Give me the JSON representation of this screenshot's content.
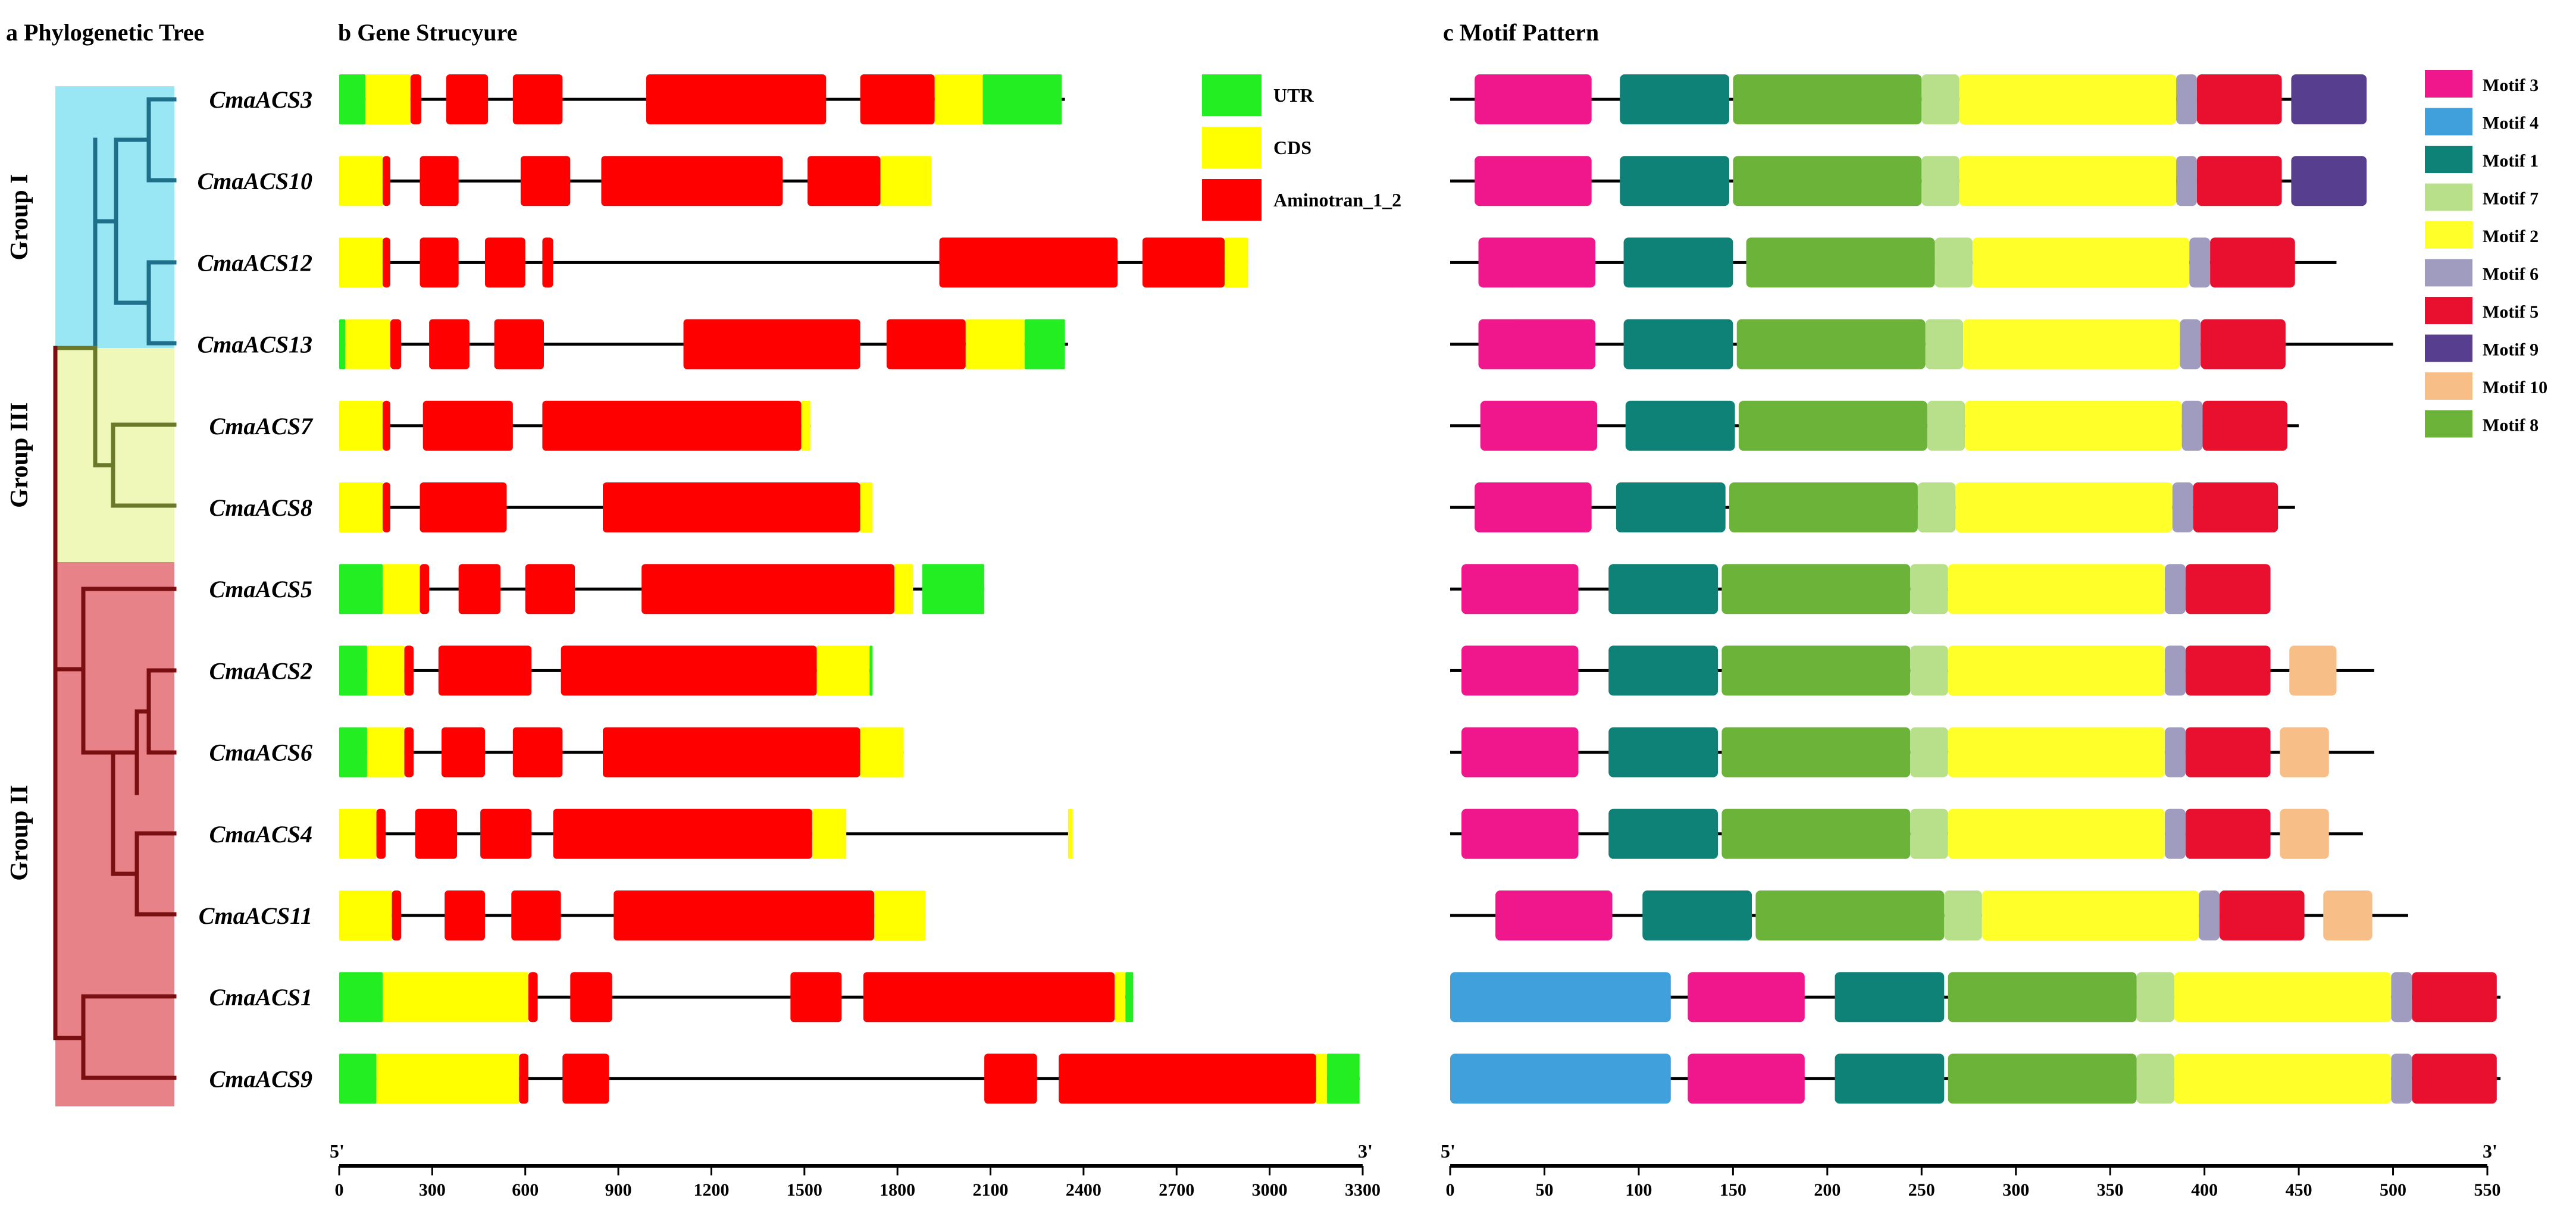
{
  "titles": {
    "a": "a Phylogenetic Tree",
    "b": "b Gene Strucyure",
    "c": "c Motif Pattern"
  },
  "groups": [
    {
      "label": "Group I",
      "color": "#99E6F5",
      "stroke": "#1E6F8A"
    },
    {
      "label": "Group III",
      "color": "#EFF8B8",
      "stroke": "#6B7A2A"
    },
    {
      "label": "Group II",
      "color": "#E68288",
      "stroke": "#7A0F12"
    }
  ],
  "genes": [
    "CmaACS3",
    "CmaACS10",
    "CmaACS12",
    "CmaACS13",
    "CmaACS7",
    "CmaACS8",
    "CmaACS5",
    "CmaACS2",
    "CmaACS6",
    "CmaACS4",
    "CmaACS11",
    "CmaACS1",
    "CmaACS9"
  ],
  "gene_axis": {
    "start_label": "5'",
    "end_label": "3'",
    "ticks": [
      0,
      300,
      600,
      900,
      1200,
      1500,
      1800,
      2100,
      2400,
      2700,
      3000,
      3300
    ],
    "max": 3300
  },
  "motif_axis": {
    "start_label": "5'",
    "end_label": "3'",
    "ticks": [
      0,
      50,
      100,
      150,
      200,
      250,
      300,
      350,
      400,
      450,
      500,
      550
    ],
    "max": 550
  },
  "feature_legend": [
    {
      "key": "UTR",
      "label": "UTR",
      "color": "#22EE22"
    },
    {
      "key": "CDS",
      "label": "CDS",
      "color": "#FFFF00"
    },
    {
      "key": "AMI",
      "label": "Aminotran_1_2",
      "color": "#FF0000"
    }
  ],
  "motif_legend": [
    {
      "key": "3",
      "label": "Motif 3",
      "color": "#F0178C"
    },
    {
      "key": "4",
      "label": "Motif 4",
      "color": "#3FA0DC"
    },
    {
      "key": "1",
      "label": "Motif 1",
      "color": "#0F8278"
    },
    {
      "key": "7",
      "label": "Motif 7",
      "color": "#B8E08A"
    },
    {
      "key": "2",
      "label": "Motif 2",
      "color": "#FFFF2A"
    },
    {
      "key": "6",
      "label": "Motif 6",
      "color": "#A09CC0"
    },
    {
      "key": "5",
      "label": "Motif 5",
      "color": "#E8102E"
    },
    {
      "key": "9",
      "label": "Motif 9",
      "color": "#573E8E"
    },
    {
      "key": "10",
      "label": "Motif 10",
      "color": "#F8BE88"
    },
    {
      "key": "8",
      "label": "Motif 8",
      "color": "#6CB33A"
    }
  ],
  "chart_data": {
    "type": "gene_structure",
    "gene_structures": [
      {
        "gene": "CmaACS3",
        "length": 2340,
        "features": [
          [
            "UTR",
            0,
            85
          ],
          [
            "CDS",
            85,
            230
          ],
          [
            "AMI",
            230,
            265
          ],
          [
            "AMI",
            345,
            480
          ],
          [
            "AMI",
            560,
            720
          ],
          [
            "AMI",
            990,
            1570
          ],
          [
            "AMI",
            1680,
            1920
          ],
          [
            "CDS",
            1920,
            2075
          ],
          [
            "UTR",
            2075,
            2330
          ]
        ]
      },
      {
        "gene": "CmaACS10",
        "length": 1910,
        "features": [
          [
            "CDS",
            0,
            140
          ],
          [
            "AMI",
            140,
            165
          ],
          [
            "AMI",
            260,
            385
          ],
          [
            "AMI",
            585,
            745
          ],
          [
            "AMI",
            845,
            1430
          ],
          [
            "AMI",
            1510,
            1745
          ],
          [
            "CDS",
            1745,
            1910
          ]
        ]
      },
      {
        "gene": "CmaACS12",
        "length": 2930,
        "features": [
          [
            "CDS",
            0,
            140
          ],
          [
            "AMI",
            140,
            165
          ],
          [
            "AMI",
            260,
            385
          ],
          [
            "AMI",
            470,
            600
          ],
          [
            "AMI",
            655,
            690
          ],
          [
            "AMI",
            1935,
            2510
          ],
          [
            "AMI",
            2590,
            2855
          ],
          [
            "CDS",
            2855,
            2930
          ]
        ]
      },
      {
        "gene": "CmaACS13",
        "length": 2350,
        "features": [
          [
            "UTR",
            0,
            20
          ],
          [
            "CDS",
            20,
            165
          ],
          [
            "AMI",
            165,
            200
          ],
          [
            "AMI",
            290,
            420
          ],
          [
            "AMI",
            500,
            660
          ],
          [
            "AMI",
            1110,
            1680
          ],
          [
            "AMI",
            1765,
            2020
          ],
          [
            "CDS",
            2020,
            2210
          ],
          [
            "UTR",
            2210,
            2340
          ]
        ]
      },
      {
        "gene": "CmaACS7",
        "length": 1520,
        "features": [
          [
            "CDS",
            0,
            140
          ],
          [
            "AMI",
            140,
            165
          ],
          [
            "AMI",
            270,
            560
          ],
          [
            "AMI",
            655,
            1490
          ],
          [
            "CDS",
            1490,
            1520
          ]
        ]
      },
      {
        "gene": "CmaACS8",
        "length": 1720,
        "features": [
          [
            "CDS",
            0,
            140
          ],
          [
            "AMI",
            140,
            165
          ],
          [
            "AMI",
            260,
            540
          ],
          [
            "AMI",
            850,
            1680
          ],
          [
            "CDS",
            1680,
            1720
          ]
        ]
      },
      {
        "gene": "CmaACS5",
        "length": 2080,
        "features": [
          [
            "UTR",
            0,
            140
          ],
          [
            "CDS",
            140,
            260
          ],
          [
            "AMI",
            260,
            290
          ],
          [
            "AMI",
            385,
            520
          ],
          [
            "AMI",
            600,
            760
          ],
          [
            "AMI",
            975,
            1790
          ],
          [
            "CDS",
            1790,
            1850
          ],
          [
            "UTR",
            1880,
            2080
          ]
        ]
      },
      {
        "gene": "CmaACS2",
        "length": 1720,
        "features": [
          [
            "UTR",
            0,
            90
          ],
          [
            "CDS",
            90,
            210
          ],
          [
            "AMI",
            210,
            240
          ],
          [
            "AMI",
            320,
            620
          ],
          [
            "AMI",
            715,
            1540
          ],
          [
            "CDS",
            1540,
            1710
          ],
          [
            "UTR",
            1710,
            1720
          ]
        ]
      },
      {
        "gene": "CmaACS6",
        "length": 1820,
        "features": [
          [
            "UTR",
            0,
            90
          ],
          [
            "CDS",
            90,
            210
          ],
          [
            "AMI",
            210,
            240
          ],
          [
            "AMI",
            330,
            470
          ],
          [
            "AMI",
            560,
            720
          ],
          [
            "AMI",
            850,
            1680
          ],
          [
            "CDS",
            1680,
            1820
          ]
        ]
      },
      {
        "gene": "CmaACS4",
        "length": 2360,
        "features": [
          [
            "CDS",
            0,
            120
          ],
          [
            "AMI",
            120,
            150
          ],
          [
            "AMI",
            245,
            380
          ],
          [
            "AMI",
            455,
            620
          ],
          [
            "AMI",
            690,
            1525
          ],
          [
            "CDS",
            1525,
            1635
          ],
          [
            "CDS",
            2350,
            2365
          ]
        ]
      },
      {
        "gene": "CmaACS11",
        "length": 1890,
        "features": [
          [
            "CDS",
            0,
            170
          ],
          [
            "AMI",
            170,
            200
          ],
          [
            "AMI",
            340,
            470
          ],
          [
            "AMI",
            555,
            715
          ],
          [
            "AMI",
            885,
            1725
          ],
          [
            "CDS",
            1725,
            1890
          ]
        ]
      },
      {
        "gene": "CmaACS1",
        "length": 2560,
        "features": [
          [
            "UTR",
            0,
            140
          ],
          [
            "CDS",
            140,
            610
          ],
          [
            "AMI",
            610,
            640
          ],
          [
            "AMI",
            745,
            880
          ],
          [
            "AMI",
            1455,
            1620
          ],
          [
            "AMI",
            1690,
            2500
          ],
          [
            "CDS",
            2500,
            2535
          ],
          [
            "UTR",
            2535,
            2560
          ]
        ]
      },
      {
        "gene": "CmaACS9",
        "length": 3290,
        "features": [
          [
            "UTR",
            0,
            120
          ],
          [
            "CDS",
            120,
            580
          ],
          [
            "AMI",
            580,
            610
          ],
          [
            "AMI",
            720,
            870
          ],
          [
            "AMI",
            2080,
            2250
          ],
          [
            "AMI",
            2320,
            3150
          ],
          [
            "CDS",
            3150,
            3185
          ],
          [
            "UTR",
            3185,
            3290
          ]
        ]
      }
    ],
    "motif_patterns": [
      {
        "gene": "CmaACS3",
        "length": 485,
        "motifs": [
          [
            "3",
            13,
            75
          ],
          [
            "1",
            90,
            148
          ],
          [
            "8",
            150,
            250
          ],
          [
            "7",
            250,
            270
          ],
          [
            "2",
            270,
            385
          ],
          [
            "6",
            385,
            396
          ],
          [
            "5",
            396,
            441
          ],
          [
            "9",
            446,
            486
          ]
        ]
      },
      {
        "gene": "CmaACS10",
        "length": 485,
        "motifs": [
          [
            "3",
            13,
            75
          ],
          [
            "1",
            90,
            148
          ],
          [
            "8",
            150,
            250
          ],
          [
            "7",
            250,
            270
          ],
          [
            "2",
            270,
            385
          ],
          [
            "6",
            385,
            396
          ],
          [
            "5",
            396,
            441
          ],
          [
            "9",
            446,
            486
          ]
        ]
      },
      {
        "gene": "CmaACS12",
        "length": 470,
        "motifs": [
          [
            "3",
            15,
            77
          ],
          [
            "1",
            92,
            150
          ],
          [
            "8",
            157,
            257
          ],
          [
            "7",
            257,
            277
          ],
          [
            "2",
            277,
            392
          ],
          [
            "6",
            392,
            403
          ],
          [
            "5",
            403,
            448
          ]
        ]
      },
      {
        "gene": "CmaACS13",
        "length": 500,
        "motifs": [
          [
            "3",
            15,
            77
          ],
          [
            "1",
            92,
            150
          ],
          [
            "8",
            152,
            252
          ],
          [
            "7",
            252,
            272
          ],
          [
            "2",
            272,
            387
          ],
          [
            "6",
            387,
            398
          ],
          [
            "5",
            398,
            443
          ]
        ]
      },
      {
        "gene": "CmaACS7",
        "length": 450,
        "motifs": [
          [
            "3",
            16,
            78
          ],
          [
            "1",
            93,
            151
          ],
          [
            "8",
            153,
            253
          ],
          [
            "7",
            253,
            273
          ],
          [
            "2",
            273,
            388
          ],
          [
            "6",
            388,
            399
          ],
          [
            "5",
            399,
            444
          ]
        ]
      },
      {
        "gene": "CmaACS8",
        "length": 448,
        "motifs": [
          [
            "3",
            13,
            75
          ],
          [
            "1",
            88,
            146
          ],
          [
            "8",
            148,
            248
          ],
          [
            "7",
            248,
            268
          ],
          [
            "2",
            268,
            383
          ],
          [
            "6",
            383,
            394
          ],
          [
            "5",
            394,
            439
          ]
        ]
      },
      {
        "gene": "CmaACS5",
        "length": 430,
        "motifs": [
          [
            "3",
            6,
            68
          ],
          [
            "1",
            84,
            142
          ],
          [
            "8",
            144,
            244
          ],
          [
            "7",
            244,
            264
          ],
          [
            "2",
            264,
            379
          ],
          [
            "6",
            379,
            390
          ],
          [
            "5",
            390,
            435
          ]
        ]
      },
      {
        "gene": "CmaACS2",
        "length": 490,
        "motifs": [
          [
            "3",
            6,
            68
          ],
          [
            "1",
            84,
            142
          ],
          [
            "8",
            144,
            244
          ],
          [
            "7",
            244,
            264
          ],
          [
            "2",
            264,
            379
          ],
          [
            "6",
            379,
            390
          ],
          [
            "5",
            390,
            435
          ],
          [
            "10",
            445,
            470
          ]
        ]
      },
      {
        "gene": "CmaACS6",
        "length": 490,
        "motifs": [
          [
            "3",
            6,
            68
          ],
          [
            "1",
            84,
            142
          ],
          [
            "8",
            144,
            244
          ],
          [
            "7",
            244,
            264
          ],
          [
            "2",
            264,
            379
          ],
          [
            "6",
            379,
            390
          ],
          [
            "5",
            390,
            435
          ],
          [
            "10",
            440,
            466
          ]
        ]
      },
      {
        "gene": "CmaACS4",
        "length": 484,
        "motifs": [
          [
            "3",
            6,
            68
          ],
          [
            "1",
            84,
            142
          ],
          [
            "8",
            144,
            244
          ],
          [
            "7",
            244,
            264
          ],
          [
            "2",
            264,
            379
          ],
          [
            "6",
            379,
            390
          ],
          [
            "5",
            390,
            435
          ],
          [
            "10",
            440,
            466
          ]
        ]
      },
      {
        "gene": "CmaACS11",
        "length": 508,
        "motifs": [
          [
            "3",
            24,
            86
          ],
          [
            "1",
            102,
            160
          ],
          [
            "8",
            162,
            262
          ],
          [
            "7",
            262,
            282
          ],
          [
            "2",
            282,
            397
          ],
          [
            "6",
            397,
            408
          ],
          [
            "5",
            408,
            453
          ],
          [
            "10",
            463,
            489
          ]
        ]
      },
      {
        "gene": "CmaACS1",
        "length": 557,
        "motifs": [
          [
            "4",
            0,
            117
          ],
          [
            "3",
            126,
            188
          ],
          [
            "1",
            204,
            262
          ],
          [
            "8",
            264,
            364
          ],
          [
            "7",
            364,
            384
          ],
          [
            "2",
            384,
            499
          ],
          [
            "6",
            499,
            510
          ],
          [
            "5",
            510,
            555
          ]
        ]
      },
      {
        "gene": "CmaACS9",
        "length": 557,
        "motifs": [
          [
            "4",
            0,
            117
          ],
          [
            "3",
            126,
            188
          ],
          [
            "1",
            204,
            262
          ],
          [
            "8",
            264,
            364
          ],
          [
            "7",
            364,
            384
          ],
          [
            "2",
            384,
            499
          ],
          [
            "6",
            499,
            510
          ],
          [
            "5",
            510,
            555
          ]
        ]
      }
    ]
  }
}
